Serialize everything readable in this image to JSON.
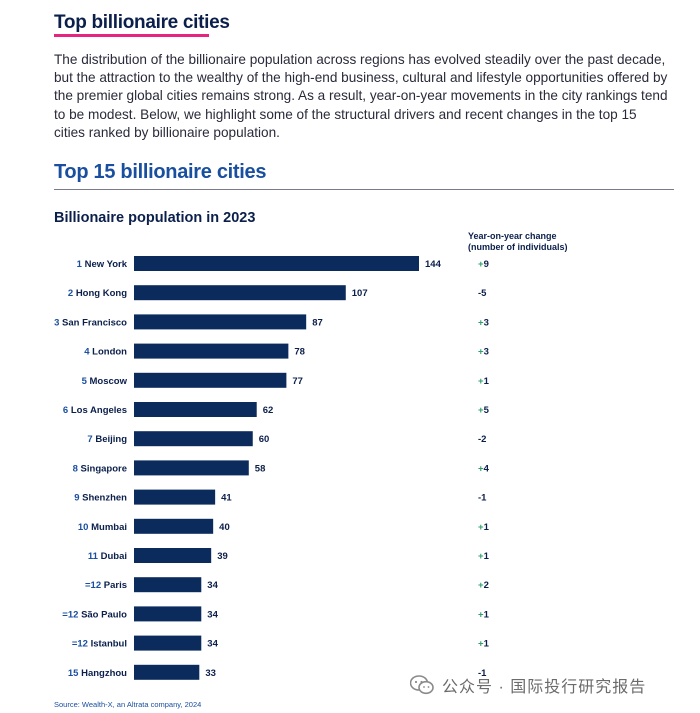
{
  "header": {
    "title": "Top billionaire cities",
    "intro": "The distribution of the billionaire population across regions has evolved steadily over the past decade, but the attraction to the wealthy of the high-end business, cultural and lifestyle opportunities offered by the premier global cities remains strong. As a result, year-on-year movements in the city rankings tend to be modest. Below, we highlight some of the structural drivers and recent changes in the top 15 cities ranked by billionaire population."
  },
  "chart": {
    "heading": "Top 15 billionaire cities",
    "subtitle": "Billionaire population in 2023",
    "yoy_header_line1": "Year-on-year change",
    "yoy_header_line2": "(number of individuals)",
    "source": "Source: Wealth-X, an Altrata company, 2024"
  },
  "colors": {
    "bar": "#0b2b5c",
    "rank": "#1a4fa0",
    "positive": "#2e9e6b",
    "negative": "#0b1f4b",
    "accent": "#e6237e"
  },
  "watermark": {
    "text": "公众号 · 国际投行研究报告",
    "icon": "wechat-icon"
  },
  "chart_data": {
    "type": "bar",
    "orientation": "horizontal",
    "title": "Billionaire population in 2023",
    "ranks": [
      "1",
      "2",
      "3",
      "4",
      "5",
      "6",
      "7",
      "8",
      "9",
      "10",
      "11",
      "=12",
      "=12",
      "=12",
      "15"
    ],
    "categories": [
      "New York",
      "Hong Kong",
      "San Francisco",
      "London",
      "Moscow",
      "Los Angeles",
      "Beijing",
      "Singapore",
      "Shenzhen",
      "Mumbai",
      "Dubai",
      "Paris",
      "São Paulo",
      "Istanbul",
      "Hangzhou"
    ],
    "values": [
      144,
      107,
      87,
      78,
      77,
      62,
      60,
      58,
      41,
      40,
      39,
      34,
      34,
      34,
      33
    ],
    "yoy_change": [
      "+9",
      "-5",
      "+3",
      "+3",
      "+1",
      "+5",
      "-2",
      "+4",
      "-1",
      "+1",
      "+1",
      "+2",
      "+1",
      "+1",
      "-1"
    ],
    "xlim": [
      0,
      144
    ]
  }
}
